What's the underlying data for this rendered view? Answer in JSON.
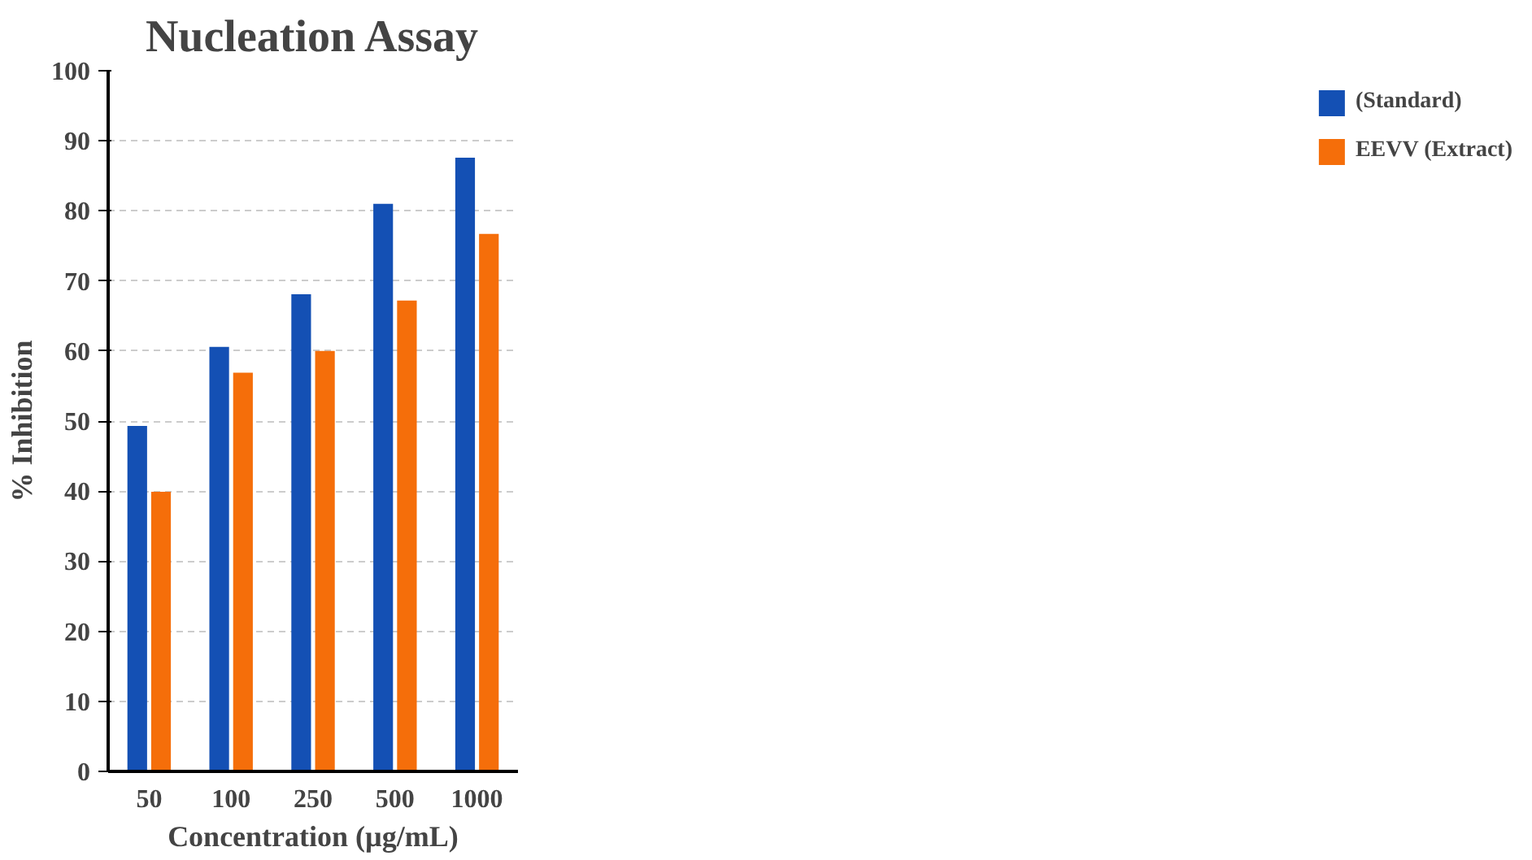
{
  "chart_data": {
    "type": "bar",
    "title": "Nucleation Assay",
    "xlabel": "Concentration (µg/mL)",
    "ylabel": "% Inhibition",
    "categories": [
      "50",
      "100",
      "250",
      "500",
      "1000"
    ],
    "series": [
      {
        "name": "(Standard)",
        "color": "#1450b4",
        "values": [
          49.3,
          60.6,
          68.1,
          81.0,
          87.6
        ]
      },
      {
        "name": "EEVV (Extract)",
        "color": "#f56e0a",
        "values": [
          39.9,
          56.9,
          60.0,
          67.2,
          76.7
        ]
      }
    ],
    "ylim": [
      0,
      100
    ],
    "yticks": [
      0,
      10,
      20,
      30,
      40,
      50,
      60,
      70,
      80,
      90,
      100
    ],
    "grid": "y",
    "legend": "right"
  }
}
